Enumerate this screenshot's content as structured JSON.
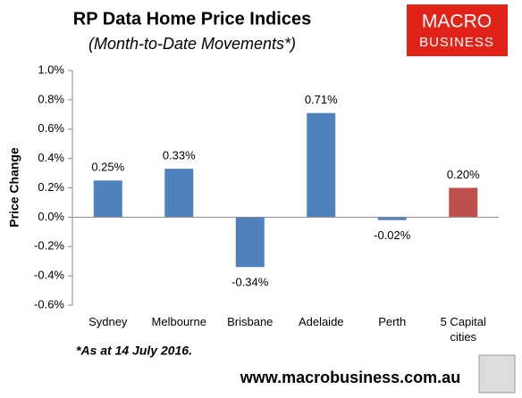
{
  "chart_data": {
    "type": "bar",
    "title": "RP Data Home Price Indices",
    "subtitle": "(Month-to-Date Movements*)",
    "y_label": "Price Change",
    "categories": [
      "Sydney",
      "Melbourne",
      "Brisbane",
      "Adelaide",
      "Perth",
      "5 Capital cities"
    ],
    "values": [
      0.25,
      0.33,
      -0.34,
      0.71,
      -0.02,
      0.2
    ],
    "value_labels": [
      "0.25%",
      "0.33%",
      "-0.34%",
      "0.71%",
      "-0.02%",
      "0.20%"
    ],
    "colors": [
      "#4f81bd",
      "#4f81bd",
      "#4f81bd",
      "#4f81bd",
      "#4f81bd",
      "#c0504d"
    ],
    "ylim": [
      -0.6,
      1.0
    ],
    "yticks": [
      {
        "value": -0.6,
        "label": "-0.6%"
      },
      {
        "value": -0.4,
        "label": "-0.4%"
      },
      {
        "value": -0.2,
        "label": "-0.2%"
      },
      {
        "value": 0,
        "label": "0.0%"
      },
      {
        "value": 0.2,
        "label": "0.2%"
      },
      {
        "value": 0.4,
        "label": "0.4%"
      },
      {
        "value": 0.6,
        "label": "0.6%"
      },
      {
        "value": 0.8,
        "label": "0.8%"
      },
      {
        "value": 1.0,
        "label": "1.0%"
      }
    ],
    "grid": false,
    "footnote": "*As at 14 July 2016.",
    "source": "www.macrobusiness.com.au",
    "logo": [
      "MACRO",
      "BUSINESS"
    ]
  }
}
